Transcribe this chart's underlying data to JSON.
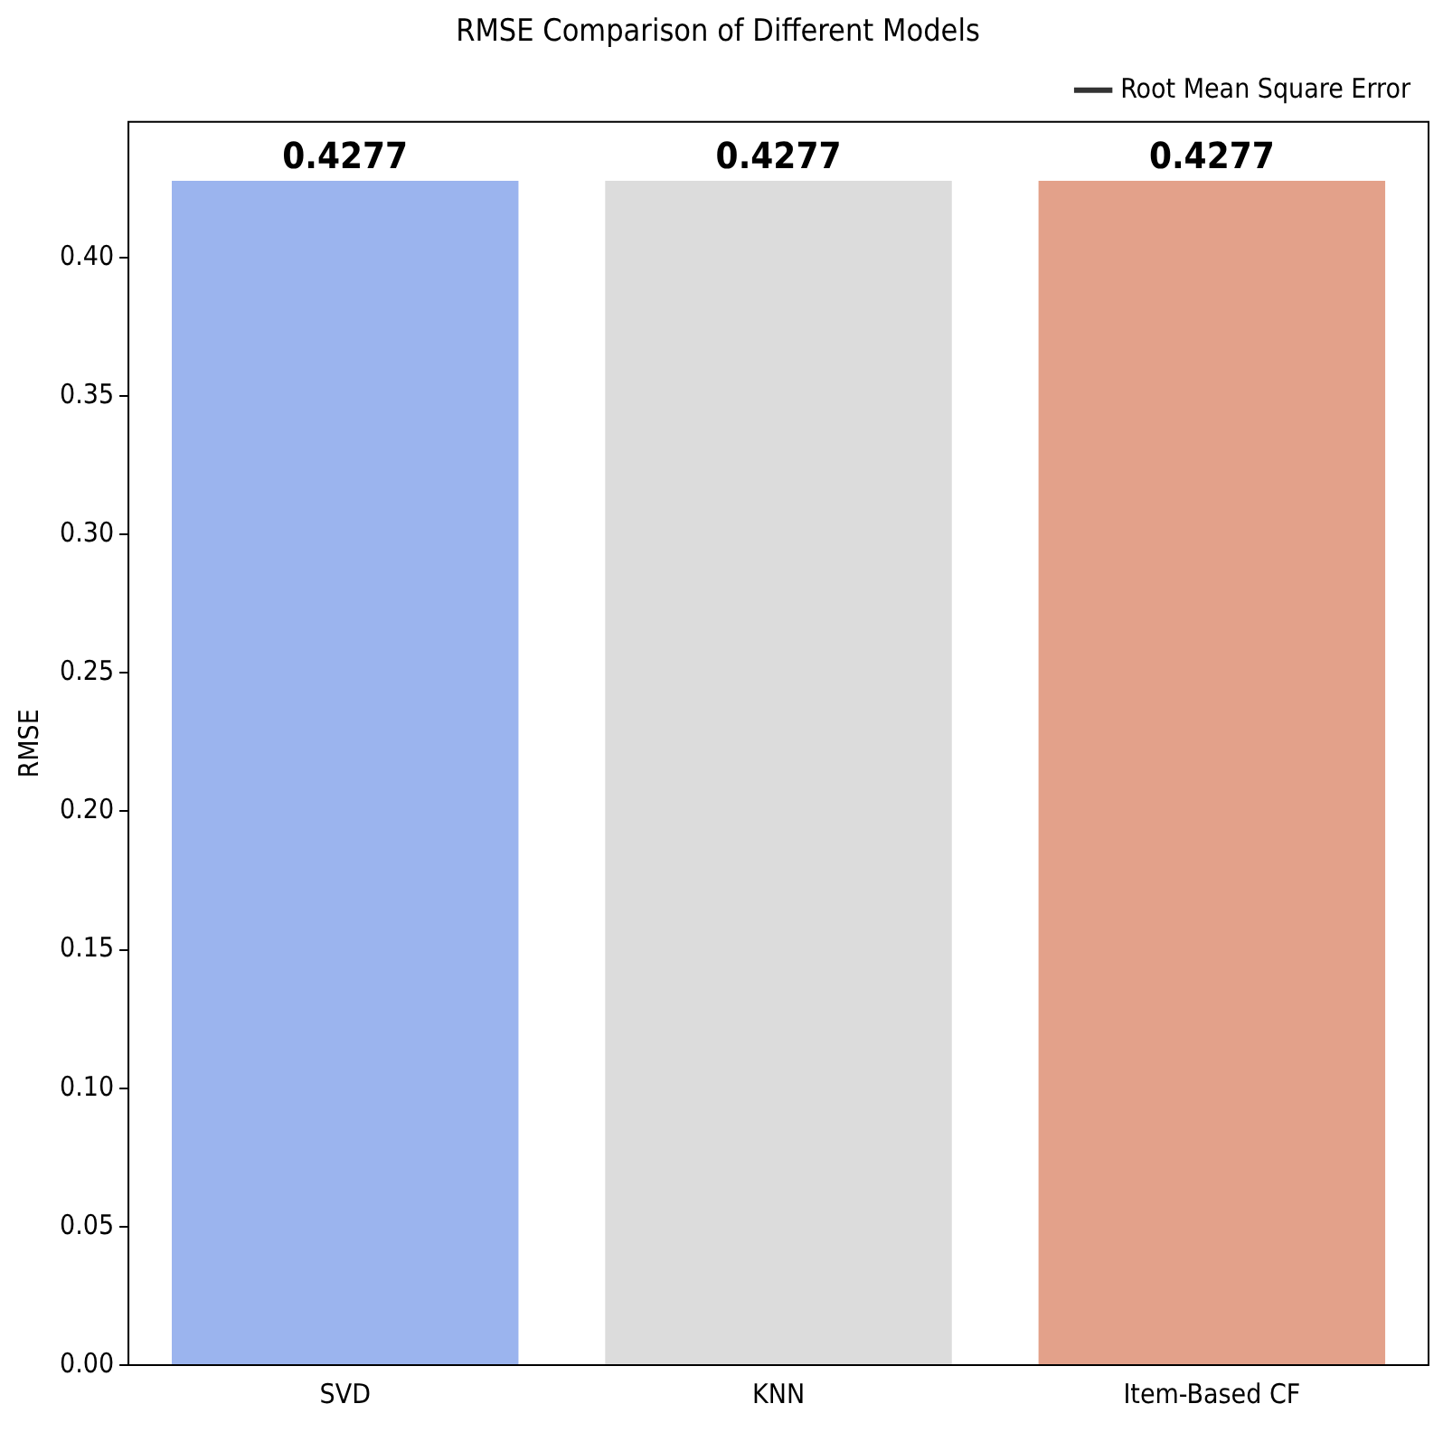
{
  "chart_data": {
    "type": "bar",
    "title": "RMSE Comparison of Different Models",
    "ylabel": "RMSE",
    "categories": [
      "SVD",
      "KNN",
      "Item-Based CF"
    ],
    "series": [
      {
        "name": "Root Mean Square Error",
        "colors": [
          "#9bb4ee",
          "#dcdcdc",
          "#e3a18a"
        ],
        "values": [
          0.4277,
          0.4277,
          0.4277
        ]
      }
    ],
    "ylim": [
      0,
      0.449
    ],
    "yticks": [
      {
        "value": 0,
        "label": "0.00"
      },
      {
        "value": 0.05,
        "label": "0.05"
      },
      {
        "value": 0.1,
        "label": "0.10"
      },
      {
        "value": 0.15,
        "label": "0.15"
      },
      {
        "value": 0.2,
        "label": "0.20"
      },
      {
        "value": 0.25,
        "label": "0.25"
      },
      {
        "value": 0.3,
        "label": "0.30"
      },
      {
        "value": 0.35,
        "label": "0.35"
      },
      {
        "value": 0.4,
        "label": "0.40"
      }
    ],
    "data_labels": true,
    "legend": "top right",
    "grid": false
  }
}
